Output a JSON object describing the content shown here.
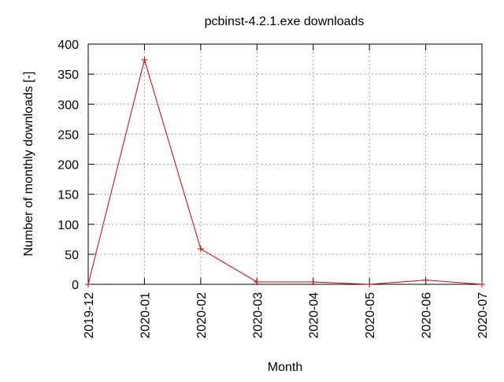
{
  "chart_data": {
    "type": "line",
    "title": "pcbinst-4.2.1.exe downloads",
    "xlabel": "Month",
    "ylabel": "Number of monthly downloads [-]",
    "categories": [
      "2019-12",
      "2020-01",
      "2020-02",
      "2020-03",
      "2020-04",
      "2020-05",
      "2020-06",
      "2020-07"
    ],
    "series": [
      {
        "values": [
          0,
          374,
          59,
          4,
          4,
          0,
          7,
          0
        ],
        "color": "#cc0000",
        "marker": "plus"
      }
    ],
    "ylim": [
      0,
      400
    ],
    "yticks": [
      "0",
      "50",
      "100",
      "150",
      "200",
      "250",
      "300",
      "350",
      "400"
    ],
    "grid": true,
    "grid_style": "dotted",
    "legend": "none"
  }
}
